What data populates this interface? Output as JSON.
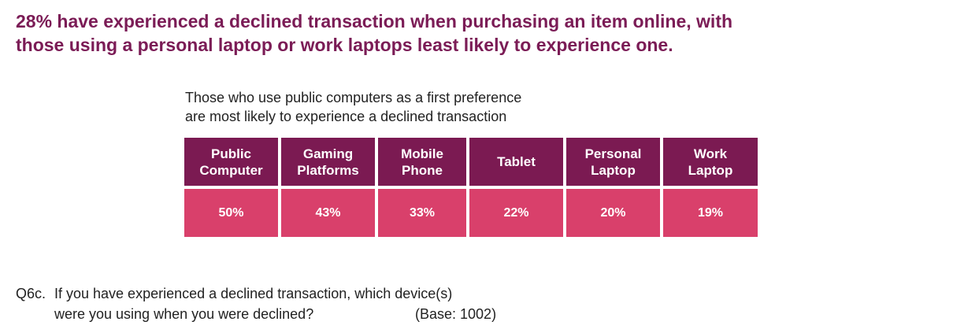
{
  "header": {
    "title_lines": [
      "28% have experienced a declined transaction when purchasing an item online, with",
      "those using a personal laptop or work laptops least likely to experience one."
    ]
  },
  "subtitle_lines": [
    "Those who use public computers as a first preference",
    "are most likely to experience a declined transaction"
  ],
  "table": {
    "headers": [
      [
        "Public",
        "Computer"
      ],
      [
        "Gaming",
        "Platforms"
      ],
      [
        "Mobile",
        "Phone"
      ],
      [
        "Tablet"
      ],
      [
        "Personal",
        "Laptop"
      ],
      [
        "Work",
        "Laptop"
      ]
    ],
    "rows": [
      [
        "50%",
        "43%",
        "33%",
        "22%",
        "20%",
        "19%"
      ]
    ]
  },
  "footnote": {
    "label": "Q6c.",
    "lines": [
      "If you have experienced a declined transaction, which device(s)",
      "were you using when you were declined?"
    ],
    "base": "(Base: 1002)"
  }
}
